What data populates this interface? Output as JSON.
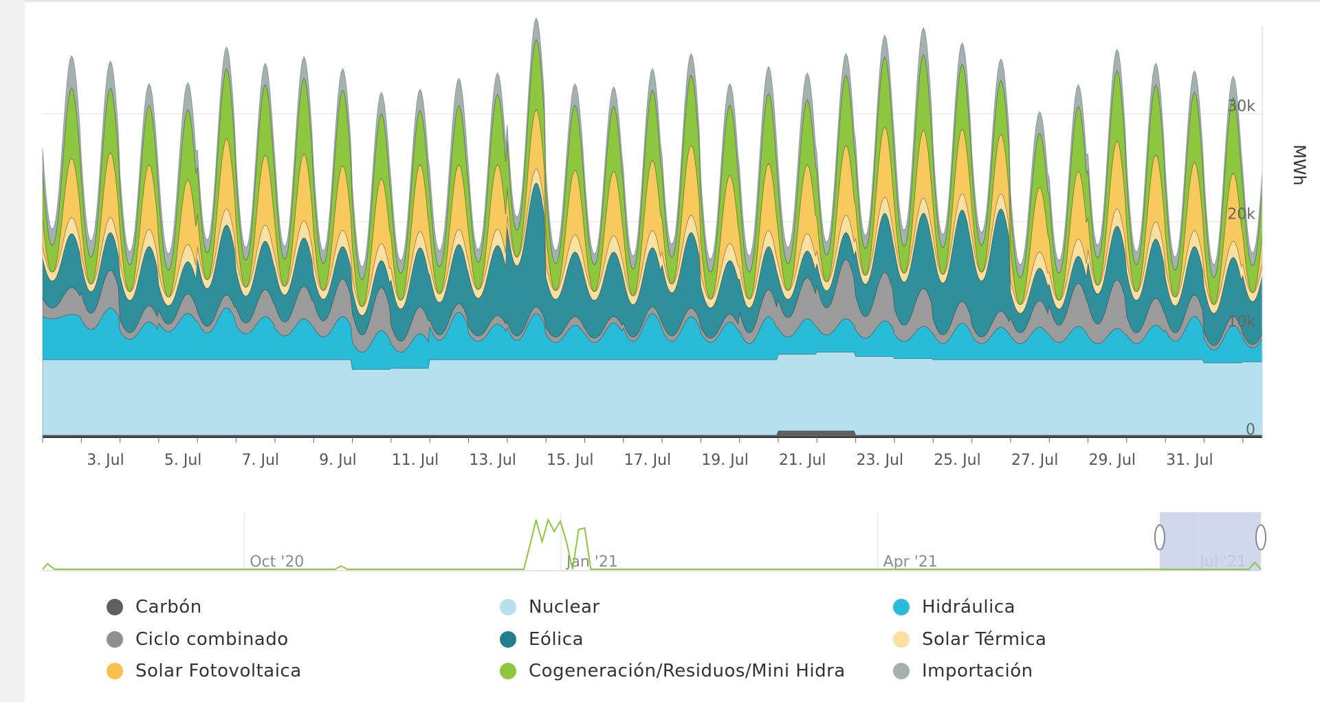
{
  "chart_data": {
    "type": "area",
    "stacked": true,
    "ylabel": "MWh",
    "ylim": [
      0,
      38000
    ],
    "yticks": [
      "0",
      "10k",
      "20k",
      "30k"
    ],
    "ytick_values": [
      0,
      10000,
      20000,
      30000
    ],
    "xticks": [
      "3. Jul",
      "5. Jul",
      "7. Jul",
      "9. Jul",
      "11. Jul",
      "13. Jul",
      "15. Jul",
      "17. Jul",
      "19. Jul",
      "21. Jul",
      "23. Jul",
      "25. Jul",
      "27. Jul",
      "29. Jul",
      "31. Jul"
    ],
    "x": [
      "1 Jul",
      "2 Jul",
      "3 Jul",
      "4 Jul",
      "5 Jul",
      "6 Jul",
      "7 Jul",
      "8 Jul",
      "9 Jul",
      "10 Jul",
      "11 Jul",
      "12 Jul",
      "13 Jul",
      "14 Jul",
      "15 Jul",
      "16 Jul",
      "17 Jul",
      "18 Jul",
      "19 Jul",
      "20 Jul",
      "21 Jul",
      "22 Jul",
      "23 Jul",
      "24 Jul",
      "25 Jul",
      "26 Jul",
      "27 Jul",
      "28 Jul",
      "29 Jul",
      "30 Jul",
      "31 Jul",
      "1 Aug"
    ],
    "x_note": "values are daily midday peaks and overnight troughs",
    "series": [
      {
        "name": "Carbón",
        "color": "#5f5f5f",
        "peak": [
          200,
          200,
          200,
          200,
          200,
          200,
          200,
          200,
          200,
          200,
          200,
          200,
          200,
          200,
          200,
          200,
          200,
          200,
          200,
          600,
          600,
          200,
          200,
          200,
          200,
          200,
          200,
          200,
          200,
          200,
          200,
          200
        ],
        "trough": [
          200,
          200,
          200,
          200,
          200,
          200,
          200,
          200,
          200,
          200,
          200,
          200,
          200,
          200,
          200,
          200,
          200,
          200,
          200,
          600,
          600,
          200,
          200,
          200,
          200,
          200,
          200,
          200,
          200,
          200,
          200,
          200
        ]
      },
      {
        "name": "Nuclear",
        "color": "#b5e1ee",
        "peak": [
          7000,
          7000,
          7000,
          7000,
          7000,
          7000,
          7000,
          7000,
          6100,
          6200,
          7000,
          7000,
          7000,
          7000,
          7000,
          7000,
          7000,
          7000,
          7000,
          7100,
          7300,
          7300,
          7100,
          7000,
          7000,
          7000,
          7000,
          7000,
          7000,
          7000,
          6700,
          6800
        ],
        "trough": [
          7000,
          7000,
          7000,
          7000,
          7000,
          7000,
          7000,
          7000,
          6100,
          6200,
          7000,
          7000,
          7000,
          7000,
          7000,
          7000,
          7000,
          7000,
          7000,
          7100,
          7300,
          7300,
          7100,
          7000,
          7000,
          7000,
          7000,
          7000,
          7000,
          7000,
          6700,
          6800
        ]
      },
      {
        "name": "Hidráulica",
        "color": "#29bcd8",
        "peak": [
          4200,
          4800,
          3500,
          4300,
          4800,
          4000,
          3800,
          4000,
          3600,
          3200,
          4400,
          3300,
          4300,
          3200,
          3400,
          4300,
          4000,
          3500,
          4000,
          3300,
          3100,
          3300,
          3000,
          3400,
          3000,
          3000,
          3100,
          2900,
          3200,
          4000,
          3500,
          3200
        ],
        "trough": [
          3800,
          2800,
          1900,
          2600,
          2500,
          2400,
          2200,
          2100,
          1600,
          1500,
          1800,
          1700,
          1800,
          1600,
          1600,
          1700,
          1700,
          1600,
          1500,
          1600,
          1600,
          1700,
          1600,
          1500,
          1500,
          1500,
          1600,
          1500,
          1500,
          1700,
          1200,
          1300
        ]
      },
      {
        "name": "Ciclo combinado",
        "color": "#9b9b9b",
        "peak": [
          2500,
          3500,
          1500,
          1800,
          1200,
          2500,
          3000,
          3500,
          4000,
          2500,
          800,
          800,
          600,
          800,
          600,
          600,
          800,
          700,
          2500,
          3800,
          5500,
          4500,
          3500,
          2000,
          1500,
          2500,
          4000,
          4500,
          2500,
          2000,
          800,
          500
        ],
        "trough": [
          1000,
          1500,
          600,
          700,
          600,
          1000,
          1300,
          1500,
          1600,
          1000,
          500,
          500,
          400,
          500,
          400,
          400,
          500,
          400,
          1000,
          1800,
          2500,
          2000,
          1500,
          800,
          600,
          1000,
          1600,
          1800,
          1000,
          800,
          400,
          300
        ]
      },
      {
        "name": "Eólica",
        "color": "#2f8f9a",
        "peak": [
          5000,
          3500,
          5500,
          3000,
          6500,
          4500,
          4500,
          3000,
          2500,
          5500,
          5500,
          6500,
          11500,
          6000,
          6000,
          5500,
          7000,
          5000,
          4000,
          2500,
          2500,
          5500,
          7000,
          8500,
          9500,
          3000,
          2500,
          5000,
          5500,
          4500,
          5500,
          7000
        ],
        "trough": [
          2500,
          2000,
          3000,
          1700,
          3500,
          2500,
          2500,
          2000,
          1800,
          3000,
          3000,
          3500,
          6500,
          3500,
          3500,
          3000,
          4000,
          2800,
          2300,
          1700,
          1600,
          3000,
          4000,
          4800,
          5200,
          1800,
          1500,
          2800,
          3000,
          2500,
          3000,
          4000
        ],
        "note": "series also shown at its regular peak-trough amplitude"
      },
      {
        "name": "Solar Térmica",
        "color": "#fbe0a0",
        "peak": [
          1500,
          1400,
          1600,
          1600,
          1500,
          1500,
          1600,
          1500,
          1600,
          1500,
          1400,
          1500,
          1300,
          1600,
          1500,
          1600,
          1600,
          1600,
          1500,
          1600,
          1600,
          1500,
          1400,
          1500,
          1400,
          1500,
          1600,
          1600,
          1600,
          1500,
          1500,
          1400
        ],
        "trough": [
          800,
          700,
          800,
          800,
          800,
          800,
          800,
          800,
          800,
          800,
          800,
          800,
          800,
          800,
          800,
          800,
          800,
          800,
          800,
          800,
          800,
          800,
          800,
          800,
          800,
          800,
          800,
          800,
          800,
          800,
          800,
          800
        ]
      },
      {
        "name": "Solar Fotovoltaica",
        "color": "#f8c95d",
        "peak": [
          5500,
          6000,
          6000,
          6000,
          6500,
          6500,
          6200,
          6000,
          6000,
          6200,
          6000,
          6000,
          5500,
          6000,
          6000,
          6500,
          6500,
          6300,
          6200,
          6400,
          6500,
          6500,
          6300,
          6000,
          5500,
          6000,
          6300,
          6300,
          6200,
          6300,
          6300,
          6000
        ],
        "trough": [
          0,
          0,
          0,
          0,
          0,
          0,
          0,
          0,
          0,
          0,
          0,
          0,
          0,
          0,
          0,
          0,
          0,
          0,
          0,
          0,
          0,
          0,
          0,
          0,
          0,
          0,
          0,
          0,
          0,
          0,
          0,
          0
        ]
      },
      {
        "name": "Cogeneración/Residuos/Mini Hidra",
        "color": "#8dc63f",
        "peak": [
          6500,
          6000,
          5500,
          6500,
          6500,
          6500,
          7000,
          7000,
          6000,
          5000,
          5500,
          6500,
          6500,
          6000,
          6000,
          6500,
          6500,
          6500,
          6500,
          6000,
          6500,
          6500,
          7000,
          6000,
          5000,
          5000,
          6000,
          6500,
          6500,
          6500,
          7000,
          6500
        ],
        "trough": [
          2500,
          2500,
          2500,
          2500,
          2500,
          2500,
          2500,
          2500,
          2500,
          2500,
          2500,
          2500,
          2500,
          2500,
          2500,
          2500,
          2500,
          2500,
          2500,
          2500,
          2500,
          2500,
          2500,
          2500,
          2500,
          2500,
          2500,
          2500,
          2500,
          2500,
          2500,
          2500
        ]
      },
      {
        "name": "Importación",
        "color": "#a3b1b1",
        "peak": [
          3000,
          2500,
          2000,
          2500,
          2000,
          2000,
          2000,
          2000,
          2000,
          2000,
          2500,
          2000,
          2000,
          2000,
          1800,
          2000,
          2000,
          2000,
          2500,
          2500,
          2000,
          2000,
          2500,
          2000,
          2000,
          2000,
          2000,
          2000,
          2000,
          2000,
          2000,
          2000
        ],
        "trough": [
          1500,
          1500,
          1200,
          1500,
          1200,
          1200,
          1200,
          1200,
          1200,
          1200,
          1500,
          1200,
          1200,
          1200,
          1000,
          1200,
          1200,
          1200,
          1500,
          1500,
          1200,
          1200,
          1500,
          1200,
          1200,
          1200,
          1200,
          1200,
          1200,
          1200,
          1200,
          1200
        ]
      }
    ],
    "navigator": {
      "labels": [
        "Oct '20",
        "Jan '21",
        "Apr '21",
        "Jul '21"
      ],
      "label_positions": [
        0.17,
        0.43,
        0.69,
        0.95
      ],
      "line_color": "#8dc63f",
      "selection": [
        0.917,
        1.0
      ],
      "selection_color": "#c7d1ea"
    },
    "legend_position": "bottom",
    "legend": [
      {
        "name": "Carbón",
        "color": "#5f5f5f"
      },
      {
        "name": "Nuclear",
        "color": "#b5e1ee"
      },
      {
        "name": "Hidráulica",
        "color": "#29bcd8"
      },
      {
        "name": "Ciclo combinado",
        "color": "#8f8f8f"
      },
      {
        "name": "Eólica",
        "color": "#1f7f8c"
      },
      {
        "name": "Solar Térmica",
        "color": "#fbe0a0"
      },
      {
        "name": "Solar Fotovoltaica",
        "color": "#f8c04a"
      },
      {
        "name": "Cogeneración/Residuos/Mini Hidra",
        "color": "#8dc63f"
      },
      {
        "name": "Importación",
        "color": "#a3b1b1"
      }
    ]
  }
}
